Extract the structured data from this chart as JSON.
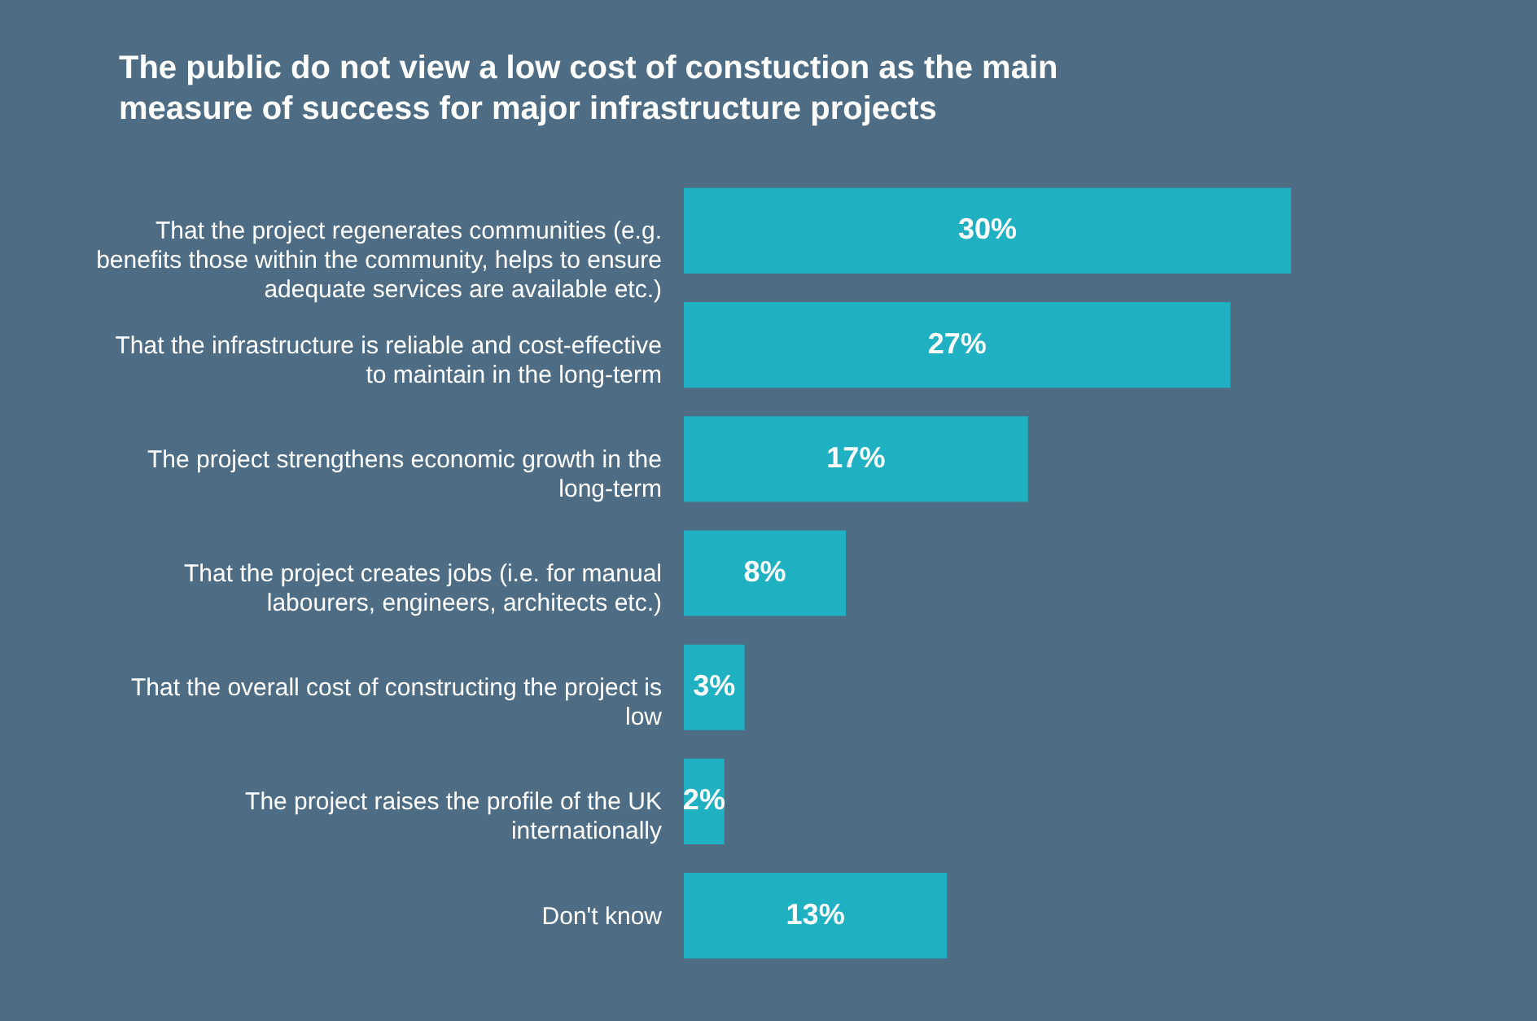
{
  "chart_data": {
    "type": "bar",
    "orientation": "horizontal",
    "title": "The public do not view a low cost of constuction as the main measure of success for major infrastructure projects",
    "categories": [
      "That the project regenerates communities (e.g. benefits those within the community, helps to ensure adequate services are available etc.)",
      "That the infrastructure is reliable and cost-effective to maintain in the long-term",
      "The project strengthens economic growth in the long-term",
      "That the project creates jobs (i.e. for manual labourers, engineers, architects etc.)",
      "That the overall cost of constructing the project is low",
      "The project raises the profile of the UK internationally",
      "Don't know"
    ],
    "values": [
      30,
      27,
      17,
      8,
      3,
      2,
      13
    ],
    "value_labels": [
      "30%",
      "27%",
      "17%",
      "8%",
      "3%",
      "2%",
      "13%"
    ],
    "color": "#1fb1c1",
    "grid": false
  }
}
